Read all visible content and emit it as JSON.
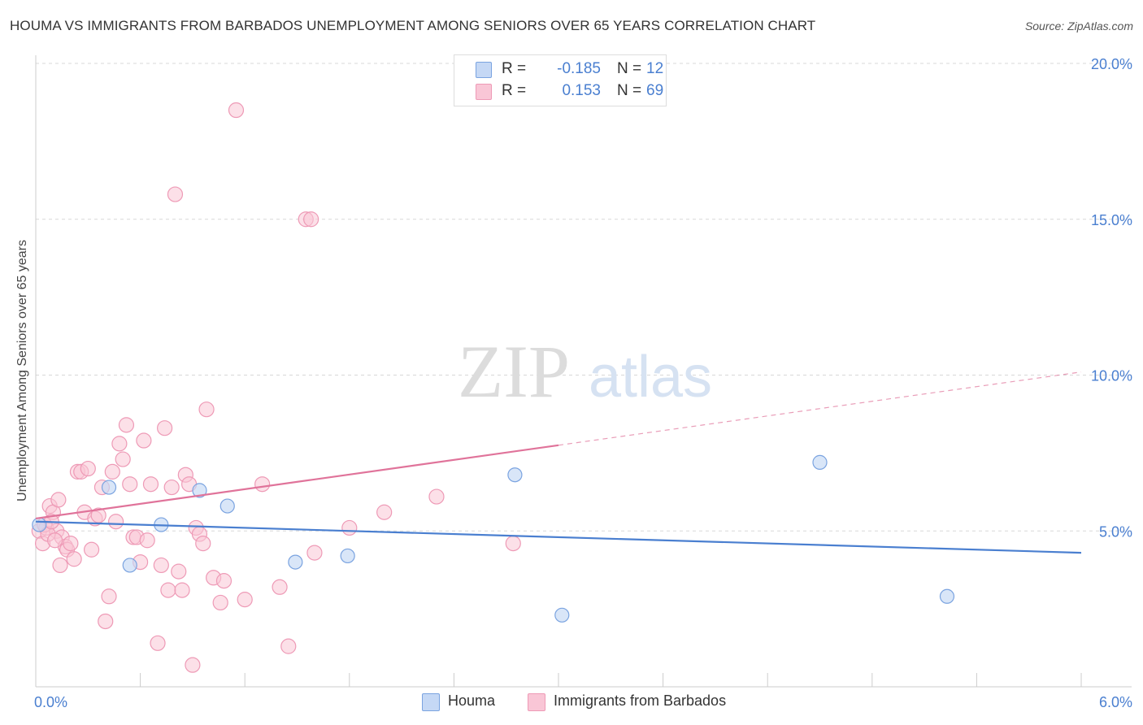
{
  "title": "HOUMA VS IMMIGRANTS FROM BARBADOS UNEMPLOYMENT AMONG SENIORS OVER 65 YEARS CORRELATION CHART",
  "source": "Source: ZipAtlas.com",
  "watermark": {
    "zip": "ZIP",
    "atlas": "atlas"
  },
  "colors": {
    "blue": "#4a7fd0",
    "blue_fill": "#c5d8f5",
    "blue_stroke": "#7aa3e0",
    "pink": "#e0739a",
    "pink_fill": "#f9c6d6",
    "pink_stroke": "#ee9ab6",
    "grid": "#d8d8d8",
    "axis_text": "#4a7fd0"
  },
  "legend_top": {
    "rows": [
      {
        "r_label": "R =",
        "r_value": "-0.185",
        "n_label": "N =",
        "n_value": "12",
        "swatch": "blue"
      },
      {
        "r_label": "R =",
        "r_value": "0.153",
        "n_label": "N =",
        "n_value": "69",
        "swatch": "pink"
      }
    ]
  },
  "legend_bottom": [
    {
      "label": "Houma",
      "swatch": "blue"
    },
    {
      "label": "Immigrants from Barbados",
      "swatch": "pink"
    }
  ],
  "chart_data": {
    "type": "scatter",
    "title": "HOUMA VS IMMIGRANTS FROM BARBADOS UNEMPLOYMENT AMONG SENIORS OVER 65 YEARS CORRELATION CHART",
    "xlabel": "",
    "ylabel": "Unemployment Among Seniors over 65 years",
    "xlim": [
      0,
      6.0
    ],
    "ylim": [
      0,
      20.0
    ],
    "x_tick_labels": [
      "0.0%",
      "6.0%"
    ],
    "x_tick_values": [
      0,
      6.0
    ],
    "y_tick_labels": [
      "5.0%",
      "10.0%",
      "15.0%",
      "20.0%"
    ],
    "y_tick_values": [
      5,
      10,
      15,
      20
    ],
    "grid": true,
    "series": [
      {
        "name": "Houma",
        "color": "blue",
        "points": [
          [
            0.02,
            5.2
          ],
          [
            0.42,
            6.4
          ],
          [
            0.54,
            3.9
          ],
          [
            0.72,
            5.2
          ],
          [
            0.94,
            6.3
          ],
          [
            1.1,
            5.8
          ],
          [
            1.49,
            4.0
          ],
          [
            1.79,
            4.2
          ],
          [
            2.75,
            6.8
          ],
          [
            3.02,
            2.3
          ],
          [
            4.5,
            7.2
          ],
          [
            5.23,
            2.9
          ]
        ],
        "trend": {
          "x0": 0,
          "y0": 5.3,
          "x1": 6.0,
          "y1": 4.3,
          "solid_to": 6.0
        }
      },
      {
        "name": "Immigrants from Barbados",
        "color": "pink",
        "points": [
          [
            0.02,
            5.0
          ],
          [
            0.04,
            4.6
          ],
          [
            0.06,
            5.1
          ],
          [
            0.08,
            5.8
          ],
          [
            0.1,
            5.6
          ],
          [
            0.12,
            5.0
          ],
          [
            0.13,
            6.0
          ],
          [
            0.14,
            3.9
          ],
          [
            0.15,
            4.8
          ],
          [
            0.17,
            4.5
          ],
          [
            0.18,
            4.4
          ],
          [
            0.2,
            4.6
          ],
          [
            0.22,
            4.1
          ],
          [
            0.24,
            6.9
          ],
          [
            0.26,
            6.9
          ],
          [
            0.28,
            5.6
          ],
          [
            0.3,
            7.0
          ],
          [
            0.32,
            4.4
          ],
          [
            0.34,
            5.4
          ],
          [
            0.36,
            5.5
          ],
          [
            0.38,
            6.4
          ],
          [
            0.4,
            2.1
          ],
          [
            0.42,
            2.9
          ],
          [
            0.44,
            6.9
          ],
          [
            0.46,
            5.3
          ],
          [
            0.48,
            7.8
          ],
          [
            0.5,
            7.3
          ],
          [
            0.52,
            8.4
          ],
          [
            0.54,
            6.5
          ],
          [
            0.56,
            4.8
          ],
          [
            0.58,
            4.8
          ],
          [
            0.6,
            4.0
          ],
          [
            0.62,
            7.9
          ],
          [
            0.64,
            4.7
          ],
          [
            0.66,
            6.5
          ],
          [
            0.7,
            1.4
          ],
          [
            0.72,
            3.9
          ],
          [
            0.74,
            8.3
          ],
          [
            0.76,
            3.1
          ],
          [
            0.78,
            6.4
          ],
          [
            0.8,
            15.8
          ],
          [
            0.82,
            3.7
          ],
          [
            0.84,
            3.1
          ],
          [
            0.86,
            6.8
          ],
          [
            0.88,
            6.5
          ],
          [
            0.9,
            0.7
          ],
          [
            0.92,
            5.1
          ],
          [
            0.94,
            4.9
          ],
          [
            0.96,
            4.6
          ],
          [
            0.98,
            8.9
          ],
          [
            1.02,
            3.5
          ],
          [
            1.06,
            2.7
          ],
          [
            1.08,
            3.4
          ],
          [
            1.15,
            18.5
          ],
          [
            1.2,
            2.8
          ],
          [
            1.3,
            6.5
          ],
          [
            1.4,
            3.2
          ],
          [
            1.45,
            1.3
          ],
          [
            1.55,
            15.0
          ],
          [
            1.58,
            15.0
          ],
          [
            1.6,
            4.3
          ],
          [
            1.8,
            5.1
          ],
          [
            2.0,
            5.6
          ],
          [
            2.3,
            6.1
          ],
          [
            2.74,
            4.6
          ],
          [
            0.05,
            5.2
          ],
          [
            0.07,
            4.9
          ],
          [
            0.09,
            5.3
          ],
          [
            0.11,
            4.7
          ]
        ],
        "trend": {
          "x0": 0,
          "y0": 5.4,
          "x1": 6.0,
          "y1": 10.1,
          "solid_to": 3.0
        }
      }
    ]
  }
}
